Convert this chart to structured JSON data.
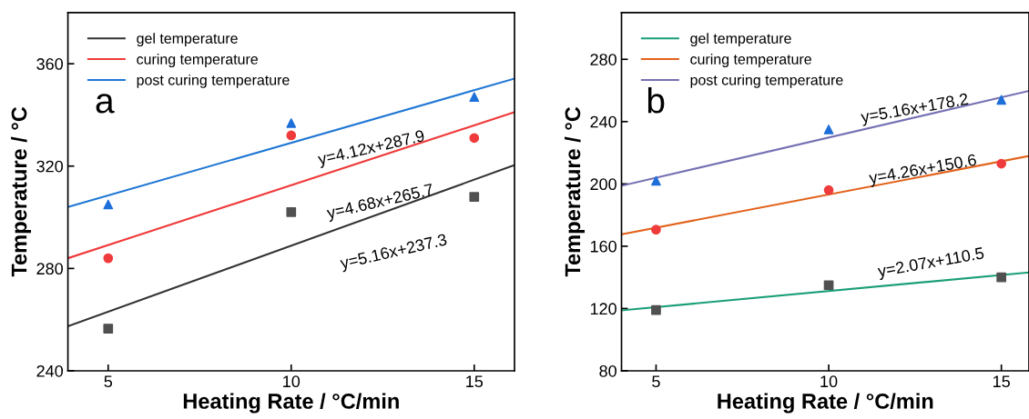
{
  "chart_data": [
    {
      "type": "scatter",
      "title": "a",
      "xlabel": "Heating Rate / °C/min",
      "ylabel": "Temperature / °C",
      "xlim": [
        3.9,
        16.1
      ],
      "ylim": [
        240,
        380
      ],
      "xticks": [
        5,
        10,
        15
      ],
      "yticks": [
        240,
        280,
        320,
        360
      ],
      "grid": false,
      "legend": "top left",
      "x": [
        5,
        10,
        15
      ],
      "series": [
        {
          "color": "#505050",
          "marker": "square",
          "values": [
            256.5,
            302,
            308
          ]
        },
        {
          "color": "#ef3b3b",
          "marker": "circle",
          "values": [
            284,
            332,
            331
          ]
        },
        {
          "color": "#1e6fd9",
          "marker": "triangle",
          "values": [
            305,
            336.8,
            347
          ]
        },
        {
          "type": "line",
          "name": "gel temperature",
          "color": "#333333",
          "x": [
            3.9,
            16.1
          ],
          "values": [
            257.4,
            320.4
          ]
        },
        {
          "type": "line",
          "name": "curing temperature",
          "color": "#f03a3a",
          "x": [
            3.9,
            16.1
          ],
          "values": [
            284,
            341.1
          ]
        },
        {
          "type": "line",
          "name": "post curing temperature",
          "color": "#1f77d4",
          "x": [
            3.9,
            16.1
          ],
          "values": [
            304,
            354.2
          ]
        }
      ],
      "annotations": [
        "y=4.12x+287.9",
        "y=4.68x+265.7",
        "y=5.16x+237.3"
      ]
    },
    {
      "type": "scatter",
      "title": "b",
      "xlabel": "Heating Rate / °C/min",
      "ylabel": "Temperature / °C",
      "xlim": [
        4,
        15.8
      ],
      "ylim": [
        80,
        310
      ],
      "xticks": [
        5,
        10,
        15
      ],
      "yticks": [
        80,
        120,
        160,
        200,
        240,
        280
      ],
      "grid": false,
      "legend": "top left",
      "x": [
        5,
        10,
        15
      ],
      "series": [
        {
          "color": "#505050",
          "marker": "square",
          "values": [
            119,
            135,
            140
          ]
        },
        {
          "color": "#ef3b3b",
          "marker": "circle",
          "values": [
            170.6,
            196,
            213
          ]
        },
        {
          "color": "#1e6fd9",
          "marker": "triangle",
          "values": [
            202,
            235,
            254
          ]
        },
        {
          "type": "line",
          "name": "gel temperature",
          "color": "#1a9e77",
          "x": [
            4,
            15.8
          ],
          "values": [
            118.8,
            143.2
          ]
        },
        {
          "type": "line",
          "name": "curing temperature",
          "color": "#e2621b",
          "x": [
            4,
            15.8
          ],
          "values": [
            167.6,
            217.9
          ]
        },
        {
          "type": "line",
          "name": "post curing temperature",
          "color": "#7570b3",
          "x": [
            4,
            15.8
          ],
          "values": [
            198.8,
            259.7
          ]
        }
      ],
      "annotations": [
        "y=5.16x+178.2",
        "y=4.26x+150.6",
        "y=2.07x+110.5"
      ]
    }
  ]
}
